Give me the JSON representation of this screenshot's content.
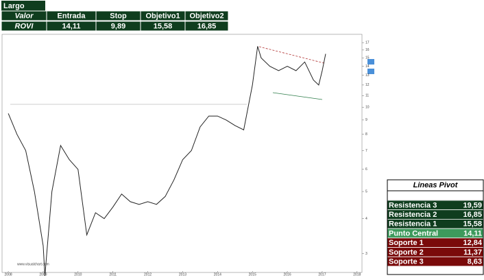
{
  "trade_table": {
    "title": "Largo",
    "headers": [
      "Valor",
      "Entrada",
      "Stop",
      "Objetivo1",
      "Objetivo2"
    ],
    "row": [
      "ROVI",
      "14,11",
      "9,89",
      "15,58",
      "16,85"
    ]
  },
  "chart": {
    "type": "line",
    "color": "#222222",
    "x": [
      2008.0,
      2008.25,
      2008.5,
      2008.75,
      2009.0,
      2009.05,
      2009.25,
      2009.5,
      2009.75,
      2010.0,
      2010.25,
      2010.5,
      2010.75,
      2011.0,
      2011.25,
      2011.5,
      2011.75,
      2012.0,
      2012.25,
      2012.5,
      2012.75,
      2013.0,
      2013.25,
      2013.5,
      2013.75,
      2014.0,
      2014.25,
      2014.5,
      2014.75,
      2015.0,
      2015.15,
      2015.25,
      2015.5,
      2015.75,
      2016.0,
      2016.25,
      2016.5,
      2016.75,
      2016.9,
      2017.0,
      2017.1
    ],
    "values": [
      9.5,
      8.0,
      7.0,
      5.0,
      3.2,
      2.5,
      5.0,
      7.3,
      6.5,
      6.0,
      3.5,
      4.2,
      4.0,
      4.4,
      4.9,
      4.6,
      4.5,
      4.6,
      4.5,
      4.8,
      5.5,
      6.5,
      7.0,
      8.5,
      9.3,
      9.3,
      9.0,
      8.6,
      8.3,
      12.0,
      16.5,
      15.0,
      14.0,
      13.5,
      14.0,
      13.5,
      14.5,
      12.5,
      12.0,
      13.5,
      15.5
    ],
    "xlim": [
      2007.9,
      2018.2
    ],
    "xticks": [
      2008,
      2009,
      2010,
      2011,
      2012,
      2013,
      2014,
      2015,
      2016,
      2017,
      2018
    ],
    "ylim": [
      2.6,
      18
    ],
    "yticks": [
      3,
      4,
      5,
      6,
      7,
      8,
      9,
      10,
      11,
      12,
      13,
      14,
      15,
      16,
      17
    ],
    "log_scale": true,
    "watermark": "www.visualchart.com"
  },
  "pivot_table": {
    "title": "Lineas Pivot",
    "rows": [
      {
        "label": "Resistencia 3",
        "value": "19,59",
        "color": "#0f3d1e"
      },
      {
        "label": "Resistencia 2",
        "value": "16,85",
        "color": "#0f3d1e"
      },
      {
        "label": "Resistencia 1",
        "value": "15,58",
        "color": "#0f3d1e"
      },
      {
        "label": "Punto Central",
        "value": "14,11",
        "color": "#3d9a5c"
      },
      {
        "label": "Soporte 1",
        "value": "12,84",
        "color": "#7a0a0a"
      },
      {
        "label": "Soporte 2",
        "value": "11,37",
        "color": "#7a0a0a"
      },
      {
        "label": "Soporte 3",
        "value": "8,63",
        "color": "#7a0a0a"
      }
    ]
  }
}
